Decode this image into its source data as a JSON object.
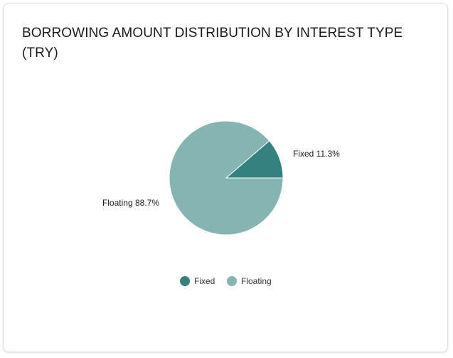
{
  "chart_data": {
    "type": "pie",
    "title": "BORROWING AMOUNT DISTRIBUTION BY INTEREST TYPE (TRY)",
    "categories": [
      "Fixed",
      "Floating"
    ],
    "values": [
      11.3,
      88.7
    ],
    "labels": [
      "Fixed 11.3%",
      "Floating 88.7%"
    ],
    "colors": [
      "#338281",
      "#85b4b3"
    ],
    "legend_position": "bottom",
    "legend": [
      "Fixed",
      "Floating"
    ]
  }
}
